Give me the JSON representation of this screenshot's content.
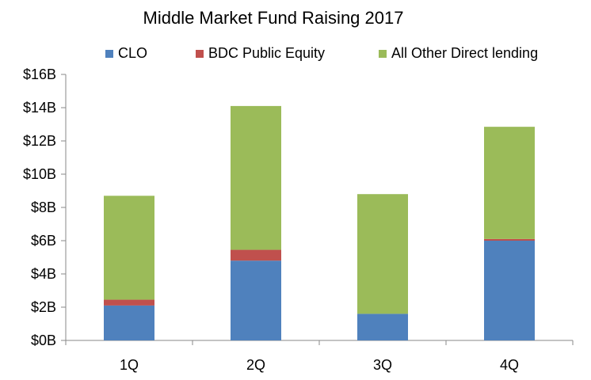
{
  "chart_data": {
    "type": "bar",
    "stacked": true,
    "title": "Middle Market Fund Raising 2017",
    "categories": [
      "1Q",
      "2Q",
      "3Q",
      "4Q"
    ],
    "series": [
      {
        "name": "CLO",
        "color": "#4F81BD",
        "values": [
          2.1,
          4.8,
          1.6,
          6.0
        ]
      },
      {
        "name": "BDC Public Equity",
        "color": "#C0504D",
        "values": [
          0.35,
          0.65,
          0.0,
          0.1
        ]
      },
      {
        "name": "All Other Direct lending",
        "color": "#9BBB59",
        "values": [
          6.25,
          8.65,
          7.2,
          6.75
        ]
      }
    ],
    "ylim": [
      0,
      16
    ],
    "yticks": [
      0,
      2,
      4,
      6,
      8,
      10,
      12,
      14,
      16
    ],
    "ytick_labels": [
      "$0B",
      "$2B",
      "$4B",
      "$6B",
      "$8B",
      "$10B",
      "$12B",
      "$14B",
      "$16B"
    ],
    "xlabel": "",
    "ylabel": "",
    "grid": false,
    "legend_position": "top"
  }
}
